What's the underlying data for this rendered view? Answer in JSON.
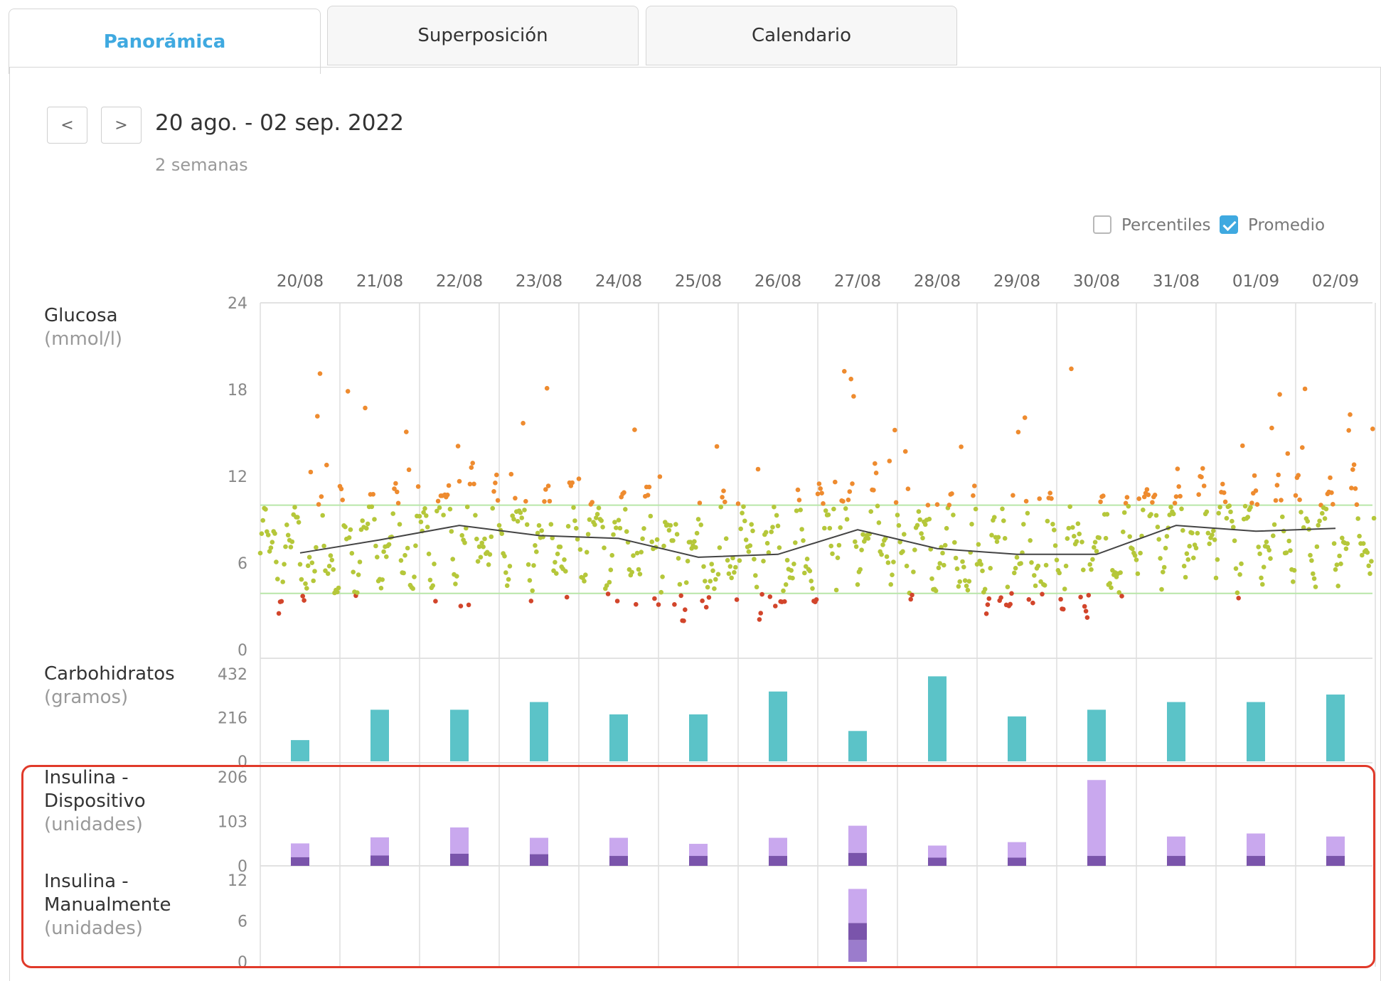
{
  "tabs": [
    {
      "label": "Panorámica",
      "active": true
    },
    {
      "label": "Superposición",
      "active": false
    },
    {
      "label": "Calendario",
      "active": false
    }
  ],
  "nav": {
    "prev": "<",
    "next": ">"
  },
  "range": {
    "title": "20 ago. - 02 sep. 2022",
    "subtitle": "2 semanas"
  },
  "toggles": {
    "percentiles": {
      "label": "Percentiles",
      "checked": false
    },
    "average": {
      "label": "Promedio",
      "checked": true
    }
  },
  "colors": {
    "accent": "#3fa9e0",
    "in_range": "#b5c73a",
    "high": "#ee8b2f",
    "low": "#d2452b",
    "carbs": "#5bc3c8",
    "basal": "#c9a8ee",
    "bolus": "#7a54ab",
    "target_band": "#b8e6a8",
    "highlight": "#e03a2a"
  },
  "chart_data": {
    "type": "mixed",
    "dates": [
      "20/08",
      "21/08",
      "22/08",
      "23/08",
      "24/08",
      "25/08",
      "26/08",
      "27/08",
      "28/08",
      "29/08",
      "30/08",
      "31/08",
      "01/09",
      "02/09"
    ],
    "glucose": {
      "title": "Glucosa",
      "unit": "(mmol/l)",
      "ylim": [
        0,
        24
      ],
      "yticks": [
        "24",
        "18",
        "12",
        "6",
        "0"
      ],
      "target_range": [
        3.9,
        10.0
      ],
      "average": [
        6.7,
        7.6,
        8.6,
        7.9,
        7.7,
        6.4,
        6.6,
        8.3,
        7.0,
        6.6,
        6.6,
        8.6,
        8.2,
        8.4
      ]
    },
    "carbs": {
      "title": "Carbohidratos",
      "unit": "(gramos)",
      "ylim": [
        0,
        432
      ],
      "yticks": [
        "432",
        "216",
        "0"
      ],
      "values": [
        105,
        255,
        255,
        293,
        232,
        232,
        345,
        150,
        420,
        222,
        255,
        293,
        293,
        330
      ]
    },
    "insulin_device": {
      "title": "Insulina - Dispositivo",
      "unit": "(unidades)",
      "ylim": [
        0,
        206
      ],
      "yticks": [
        "206",
        "103",
        "0"
      ],
      "series": [
        {
          "name": "bolus",
          "values": [
            20,
            24,
            28,
            27,
            23,
            23,
            23,
            30,
            19,
            19,
            23,
            23,
            23,
            23
          ]
        },
        {
          "name": "basal",
          "values": [
            32,
            42,
            61,
            38,
            42,
            28,
            42,
            63,
            28,
            36,
            176,
            45,
            52,
            45
          ]
        }
      ]
    },
    "insulin_manual": {
      "title": "Insulina - Manualmente",
      "unit": "(unidades)",
      "ylim": [
        0,
        12
      ],
      "yticks": [
        "12",
        "6",
        "0"
      ],
      "date_index": 7,
      "series": [
        {
          "name": "bolus",
          "values": [
            3.2
          ]
        },
        {
          "name": "bolus-2",
          "values": [
            2.5
          ]
        },
        {
          "name": "basal",
          "values": [
            5.0
          ]
        }
      ]
    }
  }
}
